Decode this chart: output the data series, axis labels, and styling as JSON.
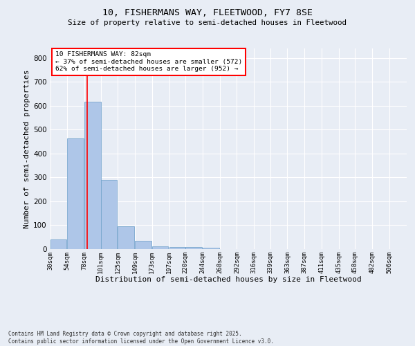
{
  "title1": "10, FISHERMANS WAY, FLEETWOOD, FY7 8SE",
  "title2": "Size of property relative to semi-detached houses in Fleetwood",
  "xlabel": "Distribution of semi-detached houses by size in Fleetwood",
  "ylabel": "Number of semi-detached properties",
  "bins": [
    30,
    54,
    78,
    101,
    125,
    149,
    173,
    197,
    220,
    244,
    268,
    292,
    316,
    339,
    363,
    387,
    411,
    435,
    458,
    482,
    506
  ],
  "counts": [
    42,
    462,
    617,
    290,
    95,
    35,
    13,
    10,
    8,
    5,
    0,
    0,
    0,
    0,
    0,
    0,
    0,
    0,
    0,
    0
  ],
  "bar_color": "#aec6e8",
  "bar_edge_color": "#6a9ec8",
  "vline_x": 82,
  "vline_color": "red",
  "annotation_title": "10 FISHERMANS WAY: 82sqm",
  "annotation_line1": "← 37% of semi-detached houses are smaller (572)",
  "annotation_line2": "62% of semi-detached houses are larger (952) →",
  "annotation_box_color": "white",
  "annotation_box_edge": "red",
  "ylim": [
    0,
    840
  ],
  "yticks": [
    0,
    100,
    200,
    300,
    400,
    500,
    600,
    700,
    800
  ],
  "background_color": "#e8edf5",
  "plot_bg_color": "#e8edf5",
  "grid_color": "white",
  "footer": "Contains HM Land Registry data © Crown copyright and database right 2025.\nContains public sector information licensed under the Open Government Licence v3.0.",
  "tick_labels": [
    "30sqm",
    "54sqm",
    "78sqm",
    "101sqm",
    "125sqm",
    "149sqm",
    "173sqm",
    "197sqm",
    "220sqm",
    "244sqm",
    "268sqm",
    "292sqm",
    "316sqm",
    "339sqm",
    "363sqm",
    "387sqm",
    "411sqm",
    "435sqm",
    "458sqm",
    "482sqm",
    "506sqm"
  ],
  "bin_width": 24
}
